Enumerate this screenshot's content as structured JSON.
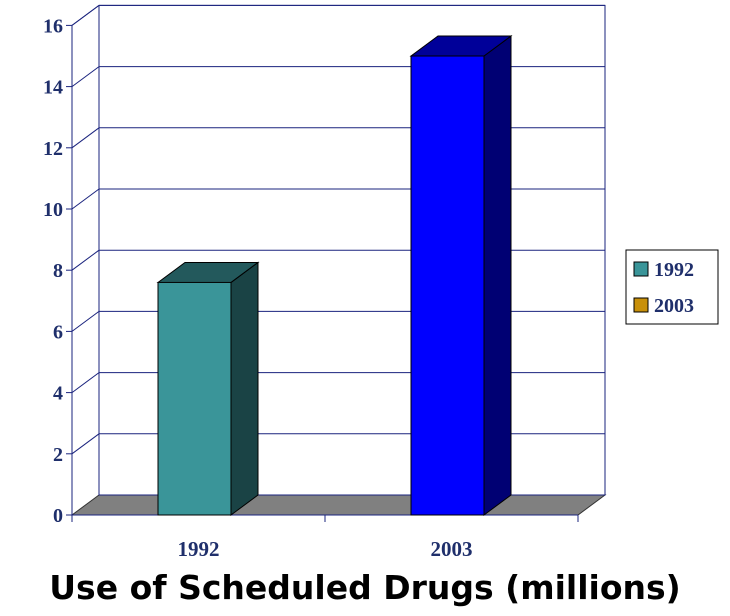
{
  "chart_data": {
    "type": "bar",
    "title": "Use of Scheduled Drugs (millions)",
    "categories": [
      "1992",
      "2003"
    ],
    "series": [
      {
        "name": "1992",
        "values": [
          7.6,
          null
        ],
        "color": "#3a9599"
      },
      {
        "name": "2003",
        "values": [
          null,
          15
        ],
        "color": "#0000ff"
      }
    ],
    "legend": [
      {
        "label": "1992",
        "color": "#3a9599"
      },
      {
        "label": "2003",
        "color": "#c8900a"
      }
    ],
    "yticks": [
      "0",
      "2",
      "4",
      "6",
      "8",
      "10",
      "12",
      "14",
      "16"
    ],
    "ylim": [
      0,
      16
    ],
    "xlabel": "",
    "ylabel": "",
    "grid": true,
    "legend_position": "right",
    "style": "3d"
  }
}
